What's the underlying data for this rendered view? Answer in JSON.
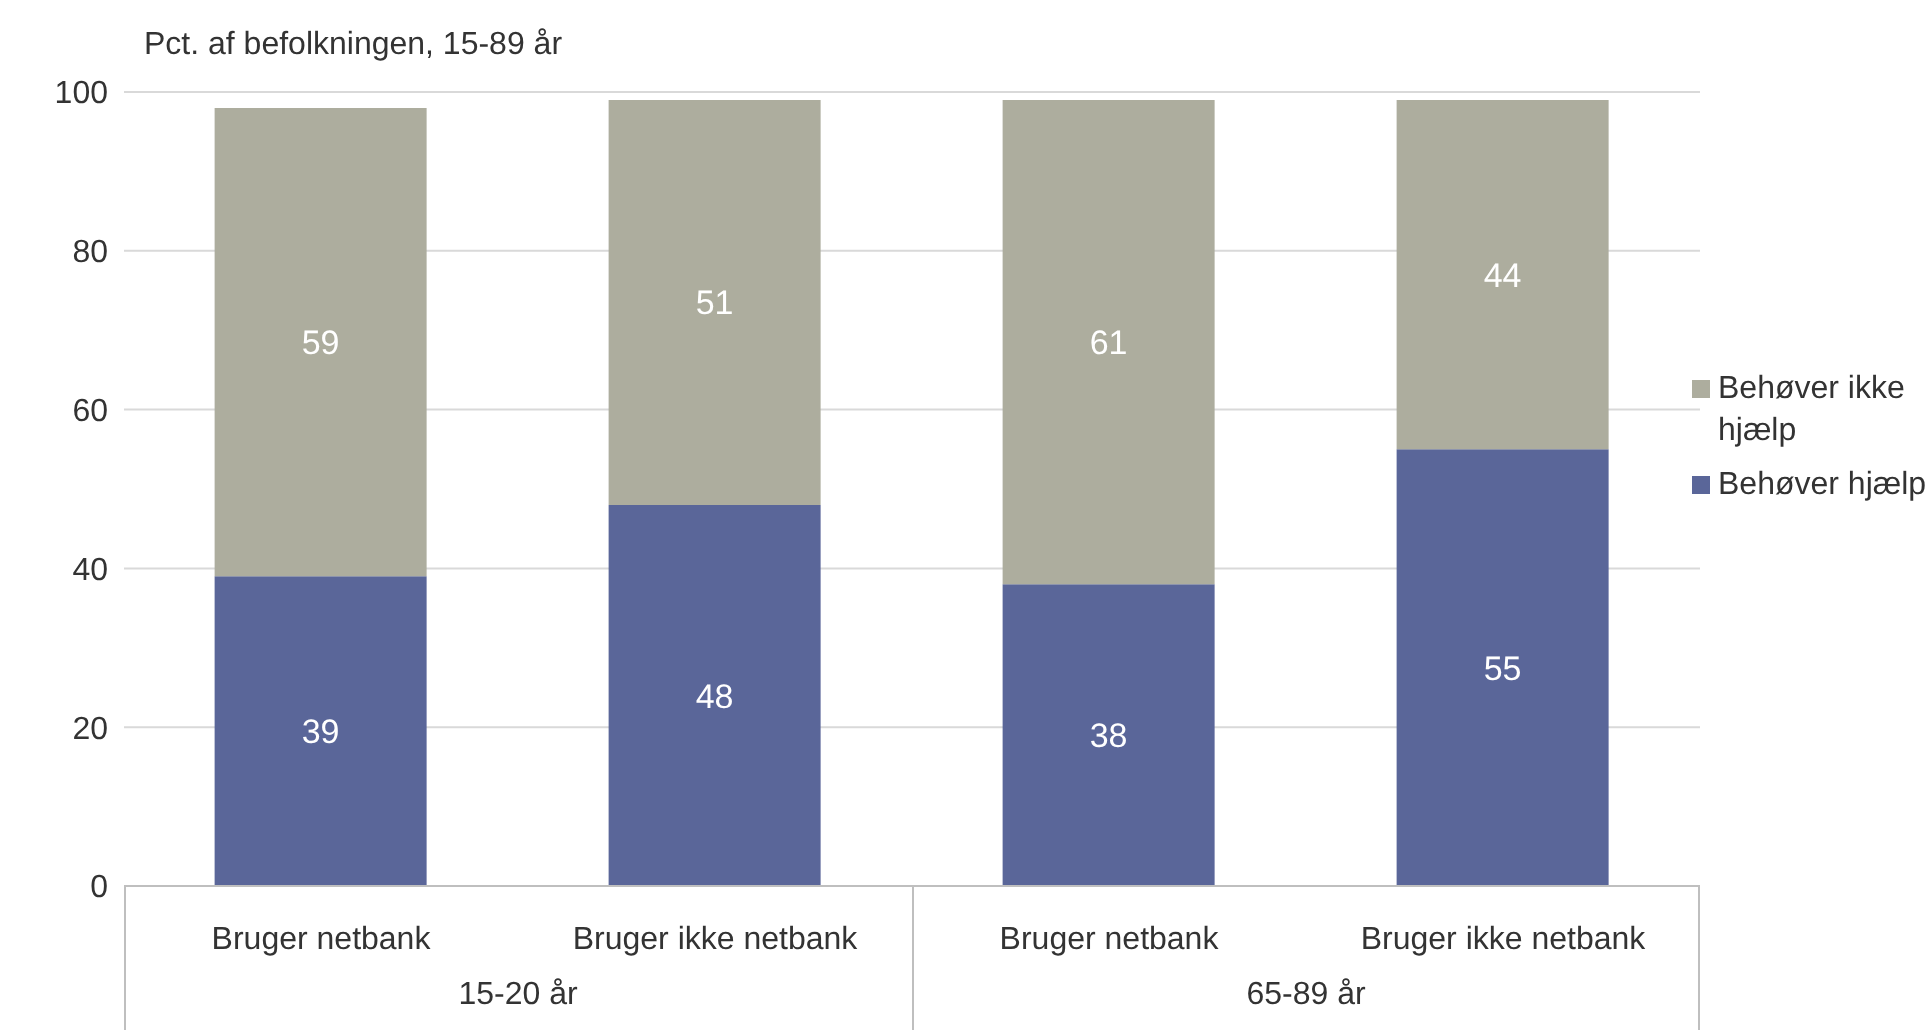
{
  "chart_data": {
    "type": "bar",
    "ylabel": "Pct. af befolkningen, 15-89 år",
    "categories": [
      "Bruger netbank",
      "Bruger ikke netbank",
      "Bruger netbank",
      "Bruger ikke netbank"
    ],
    "series": [
      {
        "name": "Behøver hjælp",
        "color": "#5a6699",
        "values": [
          39,
          48,
          38,
          55
        ]
      },
      {
        "name": "Behøver ikke hjælp",
        "color": "#adad9e",
        "values": [
          59,
          51,
          61,
          44
        ]
      }
    ],
    "annotations": [
      "15-20 år",
      "65-89 år"
    ],
    "stacked": true,
    "data_labels": true,
    "ylim": [
      0,
      100
    ],
    "yticks": [
      0,
      20,
      40,
      60,
      80,
      100
    ],
    "grid": "y",
    "legend": "right"
  }
}
